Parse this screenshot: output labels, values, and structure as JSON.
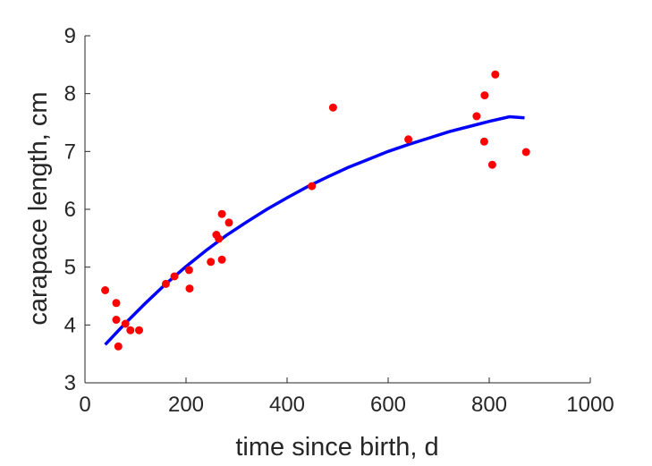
{
  "chart_data": {
    "type": "scatter",
    "title": "",
    "xlabel": "time since birth, d",
    "ylabel": "carapace length, cm",
    "xlim": [
      0,
      1000
    ],
    "ylim": [
      3,
      9
    ],
    "xticks": [
      0,
      200,
      400,
      600,
      800,
      1000
    ],
    "yticks": [
      3,
      4,
      5,
      6,
      7,
      8,
      9
    ],
    "xtick_labels": [
      "0",
      "200",
      "400",
      "600",
      "800",
      "1000"
    ],
    "ytick_labels": [
      "3",
      "4",
      "5",
      "6",
      "7",
      "8",
      "9"
    ],
    "grid": false,
    "legend": "none",
    "colors": {
      "points": "#ff0000",
      "fit": "#0000ff",
      "axis": "#262626"
    },
    "series": [
      {
        "kind": "points",
        "x": [
          40,
          62,
          62,
          66,
          80,
          90,
          107,
          160,
          177,
          206,
          207,
          249,
          260,
          265,
          271,
          271,
          285,
          449,
          491,
          640,
          775,
          790,
          791,
          806,
          812,
          873
        ],
        "y": [
          4.6,
          4.38,
          4.09,
          3.63,
          4.02,
          3.91,
          3.91,
          4.71,
          4.84,
          4.95,
          4.63,
          5.09,
          5.56,
          5.49,
          5.13,
          5.92,
          5.77,
          6.4,
          7.76,
          7.21,
          7.61,
          7.17,
          7.97,
          6.77,
          8.33,
          6.99
        ]
      },
      {
        "kind": "fit-curve",
        "x": [
          40,
          80,
          120,
          160,
          200,
          240,
          280,
          320,
          360,
          400,
          440,
          480,
          520,
          560,
          600,
          640,
          680,
          720,
          760,
          800,
          840,
          870
        ],
        "y": [
          3.66,
          4.03,
          4.38,
          4.71,
          5.01,
          5.29,
          5.55,
          5.78,
          6.0,
          6.2,
          6.39,
          6.56,
          6.72,
          6.86,
          7.0,
          7.12,
          7.23,
          7.34,
          7.43,
          7.52,
          7.6,
          7.58
        ]
      }
    ]
  }
}
